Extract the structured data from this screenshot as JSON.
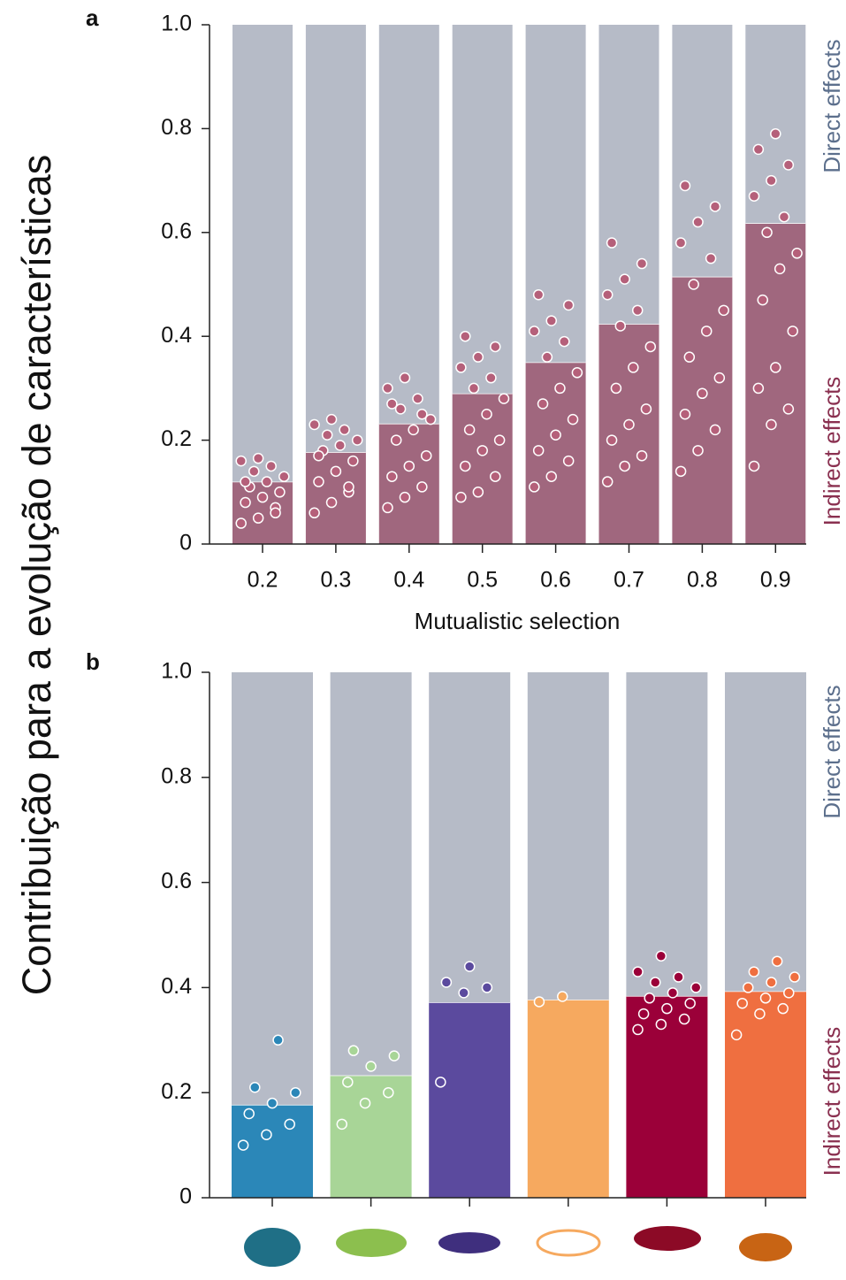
{
  "y_label": "Contribuição para a evolução de características",
  "chart_data": [
    {
      "type": "stacked-bar-points",
      "label": "a",
      "x_label": "Mutualistic selection",
      "categories": [
        "0.2",
        "0.3",
        "0.4",
        "0.5",
        "0.6",
        "0.7",
        "0.8",
        "0.9"
      ],
      "series": [
        {
          "name": "Indirect effects",
          "color": "#a0677e",
          "values": [
            0.12,
            0.177,
            0.232,
            0.29,
            0.35,
            0.424,
            0.515,
            0.618
          ]
        },
        {
          "name": "Direct effects",
          "color": "#b6bbc7",
          "values": [
            0.88,
            0.823,
            0.768,
            0.71,
            0.65,
            0.576,
            0.485,
            0.382
          ]
        }
      ],
      "points": [
        [
          0.04,
          0.05,
          0.07,
          0.08,
          0.09,
          0.1,
          0.11,
          0.12,
          0.13,
          0.14,
          0.15,
          0.16,
          0.165,
          0.06,
          0.12
        ],
        [
          0.06,
          0.08,
          0.1,
          0.12,
          0.14,
          0.16,
          0.18,
          0.19,
          0.2,
          0.21,
          0.22,
          0.23,
          0.24,
          0.11,
          0.17
        ],
        [
          0.07,
          0.09,
          0.11,
          0.13,
          0.15,
          0.17,
          0.2,
          0.22,
          0.24,
          0.26,
          0.28,
          0.3,
          0.32,
          0.25,
          0.27
        ],
        [
          0.09,
          0.1,
          0.13,
          0.15,
          0.18,
          0.2,
          0.22,
          0.25,
          0.28,
          0.3,
          0.32,
          0.34,
          0.36,
          0.38,
          0.4
        ],
        [
          0.11,
          0.13,
          0.16,
          0.18,
          0.21,
          0.24,
          0.27,
          0.3,
          0.33,
          0.36,
          0.39,
          0.41,
          0.43,
          0.46,
          0.48
        ],
        [
          0.12,
          0.15,
          0.17,
          0.2,
          0.23,
          0.26,
          0.3,
          0.34,
          0.38,
          0.42,
          0.45,
          0.48,
          0.51,
          0.54,
          0.58
        ],
        [
          0.14,
          0.18,
          0.22,
          0.25,
          0.29,
          0.32,
          0.36,
          0.41,
          0.45,
          0.5,
          0.55,
          0.58,
          0.62,
          0.65,
          0.69
        ],
        [
          0.15,
          0.23,
          0.26,
          0.3,
          0.34,
          0.41,
          0.47,
          0.53,
          0.56,
          0.6,
          0.63,
          0.67,
          0.7,
          0.73,
          0.76,
          0.79
        ]
      ],
      "point_color": "#b5607a",
      "ylim": [
        0,
        1
      ],
      "yticks": [
        0,
        0.2,
        0.4,
        0.6,
        0.8,
        {
          "value": 1,
          "label": "1.0"
        }
      ]
    },
    {
      "type": "stacked-bar-points",
      "label": "b",
      "categories": [
        null,
        null,
        null,
        null,
        null,
        null
      ],
      "series": [
        {
          "name": "Indirect effects",
          "colors": [
            "#2b87b8",
            "#a8d597",
            "#5b4a9e",
            "#f6a95f",
            "#9b0039",
            "#ef6f40"
          ],
          "values": [
            0.177,
            0.233,
            0.372,
            0.377,
            0.384,
            0.393
          ]
        },
        {
          "name": "Direct effects",
          "color": "#b6bbc7",
          "values": [
            0.823,
            0.767,
            0.628,
            0.623,
            0.616,
            0.607
          ]
        }
      ],
      "points": [
        [
          0.1,
          0.12,
          0.14,
          0.16,
          0.18,
          0.2,
          0.21,
          0.3
        ],
        [
          0.14,
          0.18,
          0.2,
          0.22,
          0.25,
          0.27,
          0.28
        ],
        [
          0.22,
          0.39,
          0.4,
          0.41,
          0.44
        ],
        [
          0.373,
          0.383
        ],
        [
          0.32,
          0.33,
          0.34,
          0.35,
          0.36,
          0.37,
          0.38,
          0.39,
          0.4,
          0.41,
          0.42,
          0.43,
          0.46
        ],
        [
          0.31,
          0.35,
          0.36,
          0.37,
          0.38,
          0.39,
          0.4,
          0.41,
          0.42,
          0.43,
          0.45
        ]
      ],
      "ylim": [
        0,
        1
      ],
      "yticks": [
        0,
        0.2,
        0.4,
        0.6,
        0.8,
        {
          "value": 1,
          "label": "1.0"
        }
      ]
    }
  ]
}
